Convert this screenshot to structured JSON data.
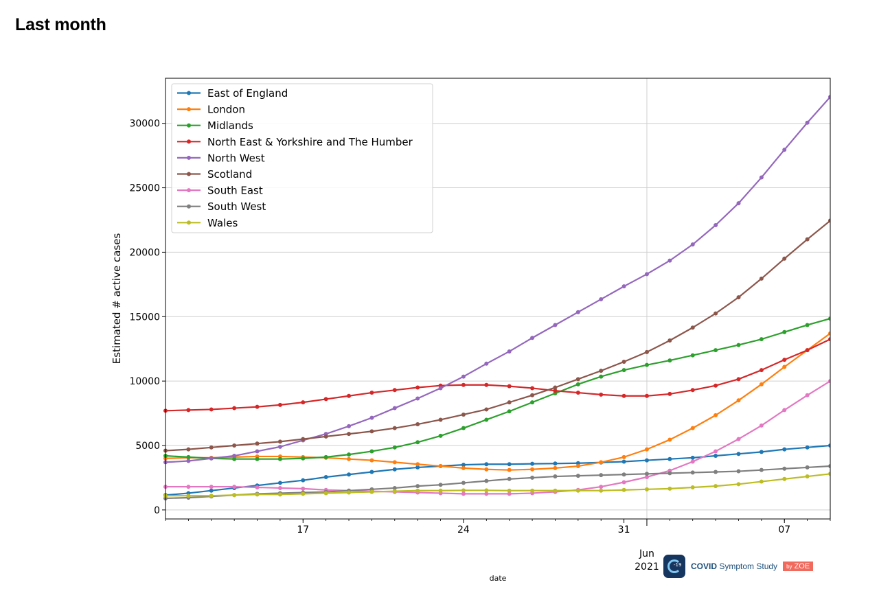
{
  "page": {
    "title": "Last month"
  },
  "brand": {
    "logo_text": "-19",
    "name_bold": "COVID",
    "name_rest": "Symptom Study",
    "by": "by",
    "company": "ZOE"
  },
  "chart_data": {
    "type": "line",
    "xlabel": "date",
    "ylabel": "Estimated # active cases",
    "ylim": [
      -700,
      33500
    ],
    "x_start": "2021-05-11",
    "x_end": "2021-06-09",
    "x": [
      "2021-05-11",
      "2021-05-12",
      "2021-05-13",
      "2021-05-14",
      "2021-05-15",
      "2021-05-16",
      "2021-05-17",
      "2021-05-18",
      "2021-05-19",
      "2021-05-20",
      "2021-05-21",
      "2021-05-22",
      "2021-05-23",
      "2021-05-24",
      "2021-05-25",
      "2021-05-26",
      "2021-05-27",
      "2021-05-28",
      "2021-05-29",
      "2021-05-30",
      "2021-05-31",
      "2021-06-01",
      "2021-06-02",
      "2021-06-03",
      "2021-06-04",
      "2021-06-05",
      "2021-06-06",
      "2021-06-07",
      "2021-06-08",
      "2021-06-09"
    ],
    "x_ticks": [
      {
        "date": "2021-05-17",
        "label": "17"
      },
      {
        "date": "2021-05-24",
        "label": "24"
      },
      {
        "date": "2021-05-31",
        "label": "31"
      },
      {
        "date": "2021-06-07",
        "label": "07"
      }
    ],
    "x_major_tick": {
      "date": "2021-06-01",
      "label_line1": "Jun",
      "label_line2": "2021"
    },
    "y_ticks": [
      0,
      5000,
      10000,
      15000,
      20000,
      25000,
      30000
    ],
    "grid": true,
    "legend_position": "top-left",
    "series": [
      {
        "name": "East of England",
        "color": "#1f77b4",
        "values": [
          1150,
          1300,
          1500,
          1700,
          1900,
          2100,
          2300,
          2550,
          2750,
          2950,
          3150,
          3300,
          3400,
          3500,
          3550,
          3550,
          3580,
          3600,
          3630,
          3680,
          3750,
          3850,
          3950,
          4050,
          4200,
          4350,
          4500,
          4700,
          4850,
          5000
        ]
      },
      {
        "name": "London",
        "color": "#ff7f0e",
        "values": [
          4000,
          4050,
          4050,
          4100,
          4150,
          4150,
          4100,
          4050,
          3950,
          3850,
          3700,
          3550,
          3400,
          3250,
          3150,
          3100,
          3150,
          3250,
          3400,
          3700,
          4100,
          4700,
          5450,
          6350,
          7350,
          8500,
          9750,
          11100,
          12400,
          13700
        ]
      },
      {
        "name": "Midlands",
        "color": "#2ca02c",
        "values": [
          4200,
          4100,
          4000,
          3950,
          3950,
          3950,
          4000,
          4100,
          4300,
          4550,
          4850,
          5250,
          5750,
          6350,
          7000,
          7650,
          8350,
          9050,
          9750,
          10350,
          10850,
          11250,
          11600,
          12000,
          12400,
          12800,
          13250,
          13800,
          14350,
          14850
        ]
      },
      {
        "name": "North East & Yorkshire and The Humber",
        "color": "#d62728",
        "values": [
          7700,
          7750,
          7800,
          7900,
          8000,
          8150,
          8350,
          8600,
          8850,
          9100,
          9300,
          9500,
          9650,
          9700,
          9700,
          9600,
          9450,
          9250,
          9100,
          8950,
          8850,
          8850,
          9000,
          9300,
          9650,
          10150,
          10850,
          11650,
          12400,
          13250
        ]
      },
      {
        "name": "North West",
        "color": "#9467bd",
        "values": [
          3700,
          3800,
          4000,
          4200,
          4550,
          4900,
          5400,
          5900,
          6500,
          7150,
          7900,
          8650,
          9450,
          10350,
          11350,
          12300,
          13350,
          14350,
          15350,
          16350,
          17350,
          18300,
          19350,
          20600,
          22100,
          23800,
          25800,
          27950,
          30050,
          32050
        ]
      },
      {
        "name": "Scotland",
        "color": "#8c564b",
        "values": [
          4600,
          4700,
          4850,
          5000,
          5150,
          5300,
          5500,
          5700,
          5900,
          6100,
          6350,
          6650,
          7000,
          7400,
          7800,
          8350,
          8900,
          9500,
          10150,
          10800,
          11500,
          12250,
          13150,
          14150,
          15250,
          16500,
          17950,
          19500,
          21000,
          22450
        ]
      },
      {
        "name": "South East",
        "color": "#e377c2",
        "values": [
          1800,
          1800,
          1800,
          1800,
          1750,
          1700,
          1650,
          1550,
          1500,
          1450,
          1400,
          1350,
          1300,
          1250,
          1250,
          1250,
          1300,
          1400,
          1550,
          1800,
          2150,
          2550,
          3050,
          3750,
          4550,
          5500,
          6550,
          7750,
          8900,
          10000
        ]
      },
      {
        "name": "South West",
        "color": "#7f7f7f",
        "values": [
          900,
          950,
          1050,
          1150,
          1250,
          1300,
          1350,
          1400,
          1500,
          1600,
          1700,
          1850,
          1950,
          2100,
          2250,
          2400,
          2500,
          2600,
          2650,
          2700,
          2750,
          2800,
          2850,
          2900,
          2950,
          3000,
          3100,
          3200,
          3300,
          3400
        ]
      },
      {
        "name": "Wales",
        "color": "#bcbd22",
        "values": [
          1100,
          1100,
          1100,
          1150,
          1200,
          1200,
          1250,
          1300,
          1350,
          1400,
          1450,
          1500,
          1500,
          1520,
          1520,
          1500,
          1500,
          1500,
          1500,
          1500,
          1550,
          1600,
          1650,
          1750,
          1850,
          2000,
          2200,
          2400,
          2600,
          2800
        ]
      }
    ]
  }
}
